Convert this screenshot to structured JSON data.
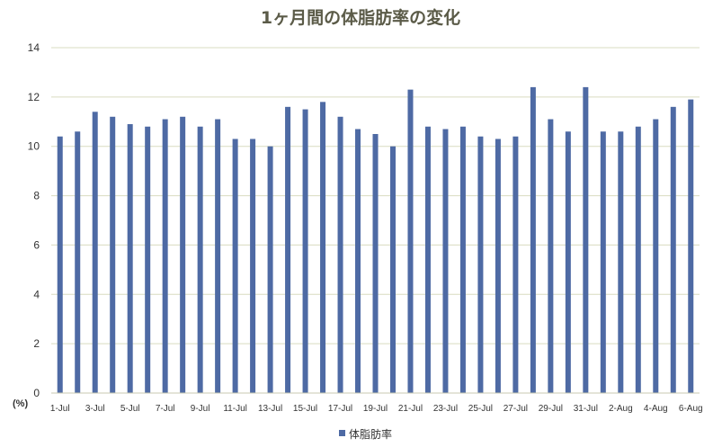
{
  "chart_data": {
    "type": "bar",
    "title": "1ヶ月間の体脂肪率の変化",
    "ylabel": "(%)",
    "ylim": [
      0,
      14
    ],
    "yticks": [
      0,
      2,
      4,
      6,
      8,
      10,
      12,
      14
    ],
    "grid": true,
    "legend_position": "bottom",
    "colors": {
      "bar": "#4e6aa4",
      "grid": "#d9dcc0",
      "axis": "#c8c8b0",
      "title": "#5b5b48"
    },
    "categories": [
      "1-Jul",
      "2-Jul",
      "3-Jul",
      "4-Jul",
      "5-Jul",
      "6-Jul",
      "7-Jul",
      "8-Jul",
      "9-Jul",
      "10-Jul",
      "11-Jul",
      "12-Jul",
      "13-Jul",
      "14-Jul",
      "15-Jul",
      "16-Jul",
      "17-Jul",
      "18-Jul",
      "19-Jul",
      "20-Jul",
      "21-Jul",
      "22-Jul",
      "23-Jul",
      "24-Jul",
      "25-Jul",
      "26-Jul",
      "27-Jul",
      "28-Jul",
      "29-Jul",
      "30-Jul",
      "31-Jul",
      "1-Aug",
      "2-Aug",
      "3-Aug",
      "4-Aug",
      "5-Aug",
      "6-Aug"
    ],
    "xtick_labels": [
      "1-Jul",
      "3-Jul",
      "5-Jul",
      "7-Jul",
      "9-Jul",
      "11-Jul",
      "13-Jul",
      "15-Jul",
      "17-Jul",
      "19-Jul",
      "21-Jul",
      "23-Jul",
      "25-Jul",
      "27-Jul",
      "29-Jul",
      "31-Jul",
      "2-Aug",
      "4-Aug",
      "6-Aug"
    ],
    "series": [
      {
        "name": "体脂肪率",
        "values": [
          10.4,
          10.6,
          11.4,
          11.2,
          10.9,
          10.8,
          11.1,
          11.2,
          10.8,
          11.1,
          10.3,
          10.3,
          10.0,
          11.6,
          11.5,
          11.8,
          11.2,
          10.7,
          10.5,
          10.0,
          12.3,
          10.8,
          10.7,
          10.8,
          10.4,
          10.3,
          10.4,
          12.4,
          11.1,
          10.6,
          12.4,
          10.6,
          10.6,
          10.8,
          11.1,
          11.6,
          11.9
        ]
      }
    ]
  }
}
